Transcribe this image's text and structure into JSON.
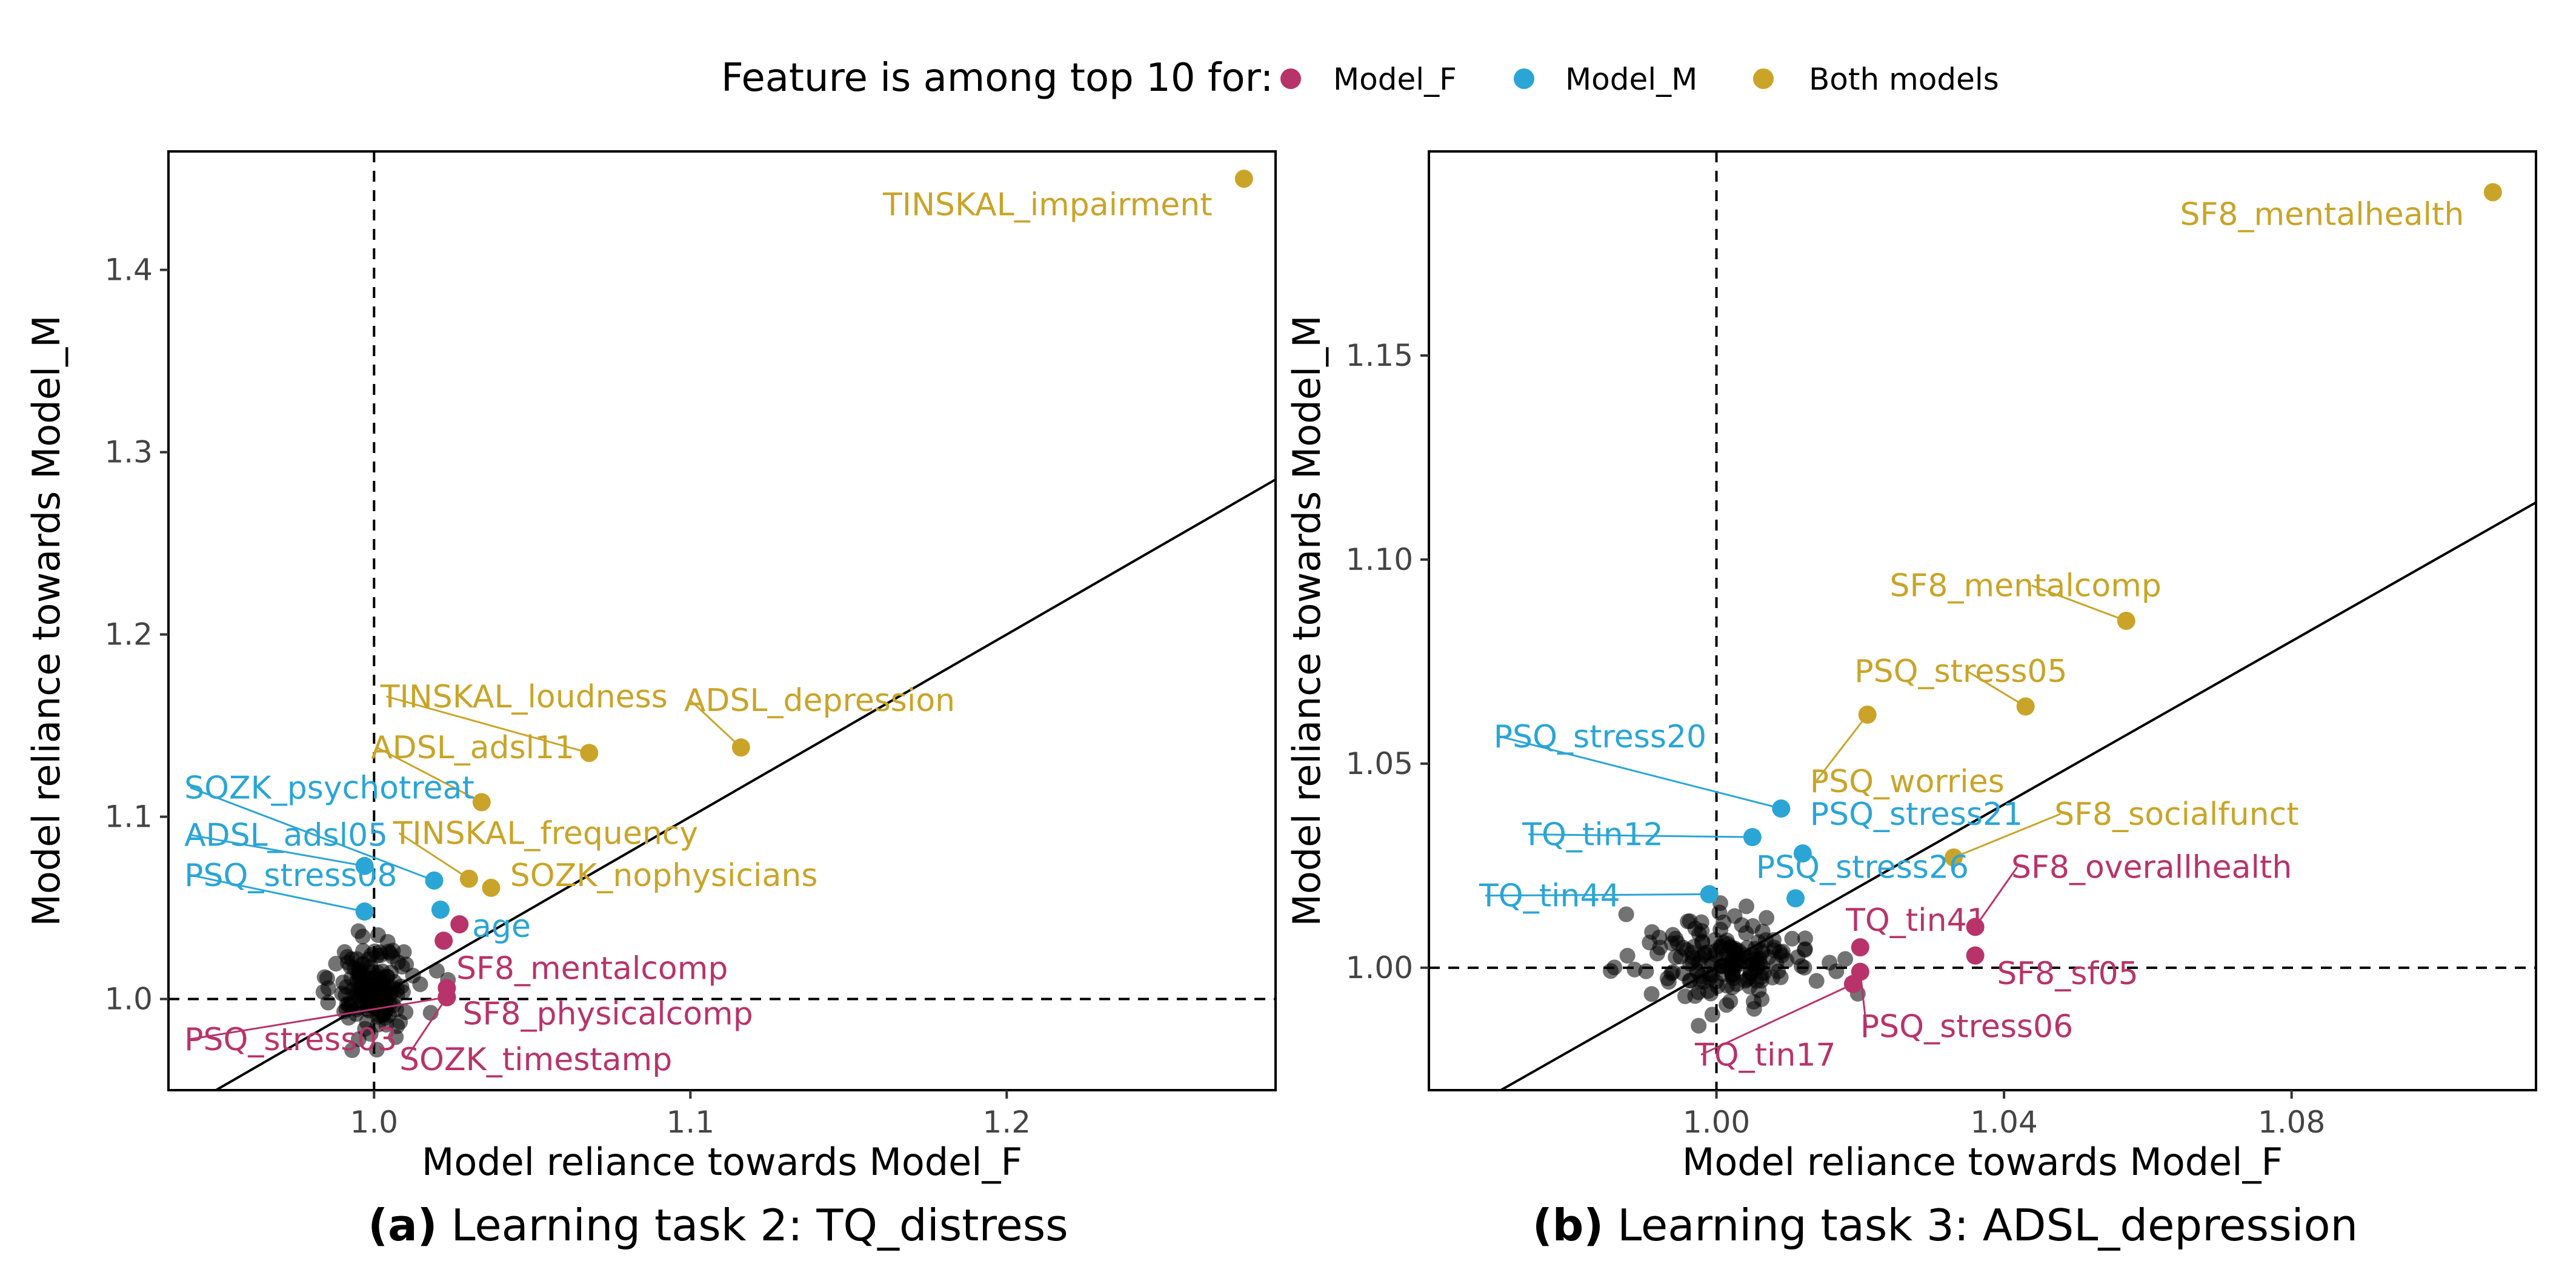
{
  "legend": {
    "title": "Feature is among top 10 for:",
    "items": [
      {
        "label": "Model_F",
        "color": "#B8336A"
      },
      {
        "label": "Model_M",
        "color": "#2AA5D6"
      },
      {
        "label": "Both models",
        "color": "#C9A428"
      }
    ]
  },
  "colors": {
    "F": "#B8336A",
    "M": "#2AA5D6",
    "B": "#C9A428",
    "other": "#000000"
  },
  "chart_data": [
    {
      "type": "scatter",
      "caption_prefix": "(a)",
      "caption": "Learning task 2: TQ_distress",
      "xlabel": "Model reliance towards Model_F",
      "ylabel": "Model reliance towards Model_M",
      "xlim": [
        0.935,
        1.285
      ],
      "ylim": [
        0.95,
        1.465
      ],
      "xticks": [
        1.0,
        1.1,
        1.2
      ],
      "xtick_labels": [
        "1.0",
        "1.1",
        "1.2"
      ],
      "yticks": [
        1.0,
        1.1,
        1.2,
        1.3,
        1.4
      ],
      "ytick_labels": [
        "1.0",
        "1.1",
        "1.2",
        "1.3",
        "1.4"
      ],
      "reference_lines": {
        "vertical": 1.0,
        "horizontal": 1.0,
        "diagonal": true
      },
      "labeled_points": [
        {
          "label": "TINSKAL_impairment",
          "x": 1.275,
          "y": 1.45,
          "group": "B",
          "lx": 1.265,
          "ly": 1.43,
          "anchor": "end"
        },
        {
          "label": "TINSKAL_loudness",
          "x": 1.068,
          "y": 1.135,
          "group": "B",
          "lx": 1.002,
          "ly": 1.16,
          "anchor": "start"
        },
        {
          "label": "ADSL_depression",
          "x": 1.116,
          "y": 1.138,
          "group": "B",
          "lx": 1.098,
          "ly": 1.158,
          "anchor": "start"
        },
        {
          "label": "ADSL_adsl11",
          "x": 1.034,
          "y": 1.108,
          "group": "B",
          "lx": 0.999,
          "ly": 1.132,
          "anchor": "start"
        },
        {
          "label": "SOZK_psychotreat",
          "x": 1.019,
          "y": 1.065,
          "group": "M",
          "lx": 0.94,
          "ly": 1.11,
          "anchor": "start"
        },
        {
          "label": "TINSKAL_frequency",
          "x": 1.03,
          "y": 1.066,
          "group": "B",
          "lx": 1.006,
          "ly": 1.085,
          "anchor": "start"
        },
        {
          "label": "ADSL_adsl05",
          "x": 0.997,
          "y": 1.073,
          "group": "M",
          "lx": 0.94,
          "ly": 1.084,
          "anchor": "start"
        },
        {
          "label": "SOZK_nophysicians",
          "x": 1.037,
          "y": 1.061,
          "group": "B",
          "lx": 1.043,
          "ly": 1.062,
          "anchor": "start"
        },
        {
          "label": "PSQ_stress08",
          "x": 0.997,
          "y": 1.048,
          "group": "M",
          "lx": 0.94,
          "ly": 1.062,
          "anchor": "start"
        },
        {
          "label": "age",
          "x": 1.021,
          "y": 1.049,
          "group": "M",
          "lx": 1.031,
          "ly": 1.034,
          "anchor": "start"
        },
        {
          "label": "",
          "x": 1.027,
          "y": 1.041,
          "group": "F",
          "lx": null,
          "ly": null,
          "anchor": "start"
        },
        {
          "label": "SF8_mentalcomp",
          "x": 1.022,
          "y": 1.032,
          "group": "F",
          "lx": 1.026,
          "ly": 1.011,
          "anchor": "start"
        },
        {
          "label": "SF8_physicalcomp",
          "x": 1.023,
          "y": 1.006,
          "group": "F",
          "lx": 1.028,
          "ly": 0.986,
          "anchor": "start"
        },
        {
          "label": "PSQ_stress03",
          "x": 1.023,
          "y": 1.001,
          "group": "F",
          "lx": 0.94,
          "ly": 0.972,
          "anchor": "start"
        },
        {
          "label": "SOZK_timestamp",
          "x": 1.023,
          "y": 1.001,
          "group": "F",
          "lx": 1.008,
          "ly": 0.961,
          "anchor": "start"
        }
      ]
    },
    {
      "type": "scatter",
      "caption_prefix": "(b)",
      "caption": "Learning task 3: ADSL_depression",
      "xlabel": "Model reliance towards Model_F",
      "ylabel": "Model reliance towards Model_M",
      "xlim": [
        0.96,
        1.114
      ],
      "ylim": [
        0.97,
        1.2
      ],
      "xticks": [
        1.0,
        1.04,
        1.08
      ],
      "xtick_labels": [
        "1.00",
        "1.04",
        "1.08"
      ],
      "yticks": [
        1.0,
        1.05,
        1.1,
        1.15
      ],
      "ytick_labels": [
        "1.00",
        "1.05",
        "1.10",
        "1.15"
      ],
      "reference_lines": {
        "vertical": 1.0,
        "horizontal": 1.0,
        "diagonal": true
      },
      "labeled_points": [
        {
          "label": "SF8_mentalhealth",
          "x": 1.108,
          "y": 1.19,
          "group": "B",
          "lx": 1.104,
          "ly": 1.182,
          "anchor": "end"
        },
        {
          "label": "SF8_mentalcomp",
          "x": 1.057,
          "y": 1.085,
          "group": "B",
          "lx": 1.043,
          "ly": 1.091,
          "anchor": "middle"
        },
        {
          "label": "PSQ_stress05",
          "x": 1.043,
          "y": 1.064,
          "group": "B",
          "lx": 1.034,
          "ly": 1.07,
          "anchor": "middle"
        },
        {
          "label": "PSQ_worries",
          "x": 1.021,
          "y": 1.062,
          "group": "B",
          "lx": 1.013,
          "ly": 1.043,
          "anchor": "start"
        },
        {
          "label": "PSQ_stress20",
          "x": 1.009,
          "y": 1.039,
          "group": "M",
          "lx": 0.969,
          "ly": 1.054,
          "anchor": "start"
        },
        {
          "label": "PSQ_stress21",
          "x": 1.012,
          "y": 1.028,
          "group": "M",
          "lx": 1.013,
          "ly": 1.035,
          "anchor": "start"
        },
        {
          "label": "TQ_tin12",
          "x": 1.005,
          "y": 1.032,
          "group": "M",
          "lx": 0.973,
          "ly": 1.03,
          "anchor": "start"
        },
        {
          "label": "SF8_socialfunct",
          "x": 1.033,
          "y": 1.027,
          "group": "B",
          "lx": 1.047,
          "ly": 1.035,
          "anchor": "start"
        },
        {
          "label": "PSQ_stress26",
          "x": 1.011,
          "y": 1.017,
          "group": "M",
          "lx": 1.0055,
          "ly": 1.022,
          "anchor": "start"
        },
        {
          "label": "SF8_overallhealth",
          "x": 1.036,
          "y": 1.01,
          "group": "F",
          "lx": 1.041,
          "ly": 1.022,
          "anchor": "start"
        },
        {
          "label": "TQ_tin44",
          "x": 0.999,
          "y": 1.018,
          "group": "M",
          "lx": 0.967,
          "ly": 1.015,
          "anchor": "start"
        },
        {
          "label": "TQ_tin41",
          "x": 1.02,
          "y": 1.005,
          "group": "F",
          "lx": 1.018,
          "ly": 1.009,
          "anchor": "start"
        },
        {
          "label": "SF8_sf05",
          "x": 1.036,
          "y": 1.003,
          "group": "F",
          "lx": 1.039,
          "ly": 0.996,
          "anchor": "start"
        },
        {
          "label": "PSQ_stress06",
          "x": 1.02,
          "y": 0.999,
          "group": "F",
          "lx": 1.02,
          "ly": 0.983,
          "anchor": "start"
        },
        {
          "label": "TQ_tin17",
          "x": 1.019,
          "y": 0.996,
          "group": "F",
          "lx": 0.997,
          "ly": 0.976,
          "anchor": "start"
        }
      ]
    }
  ]
}
